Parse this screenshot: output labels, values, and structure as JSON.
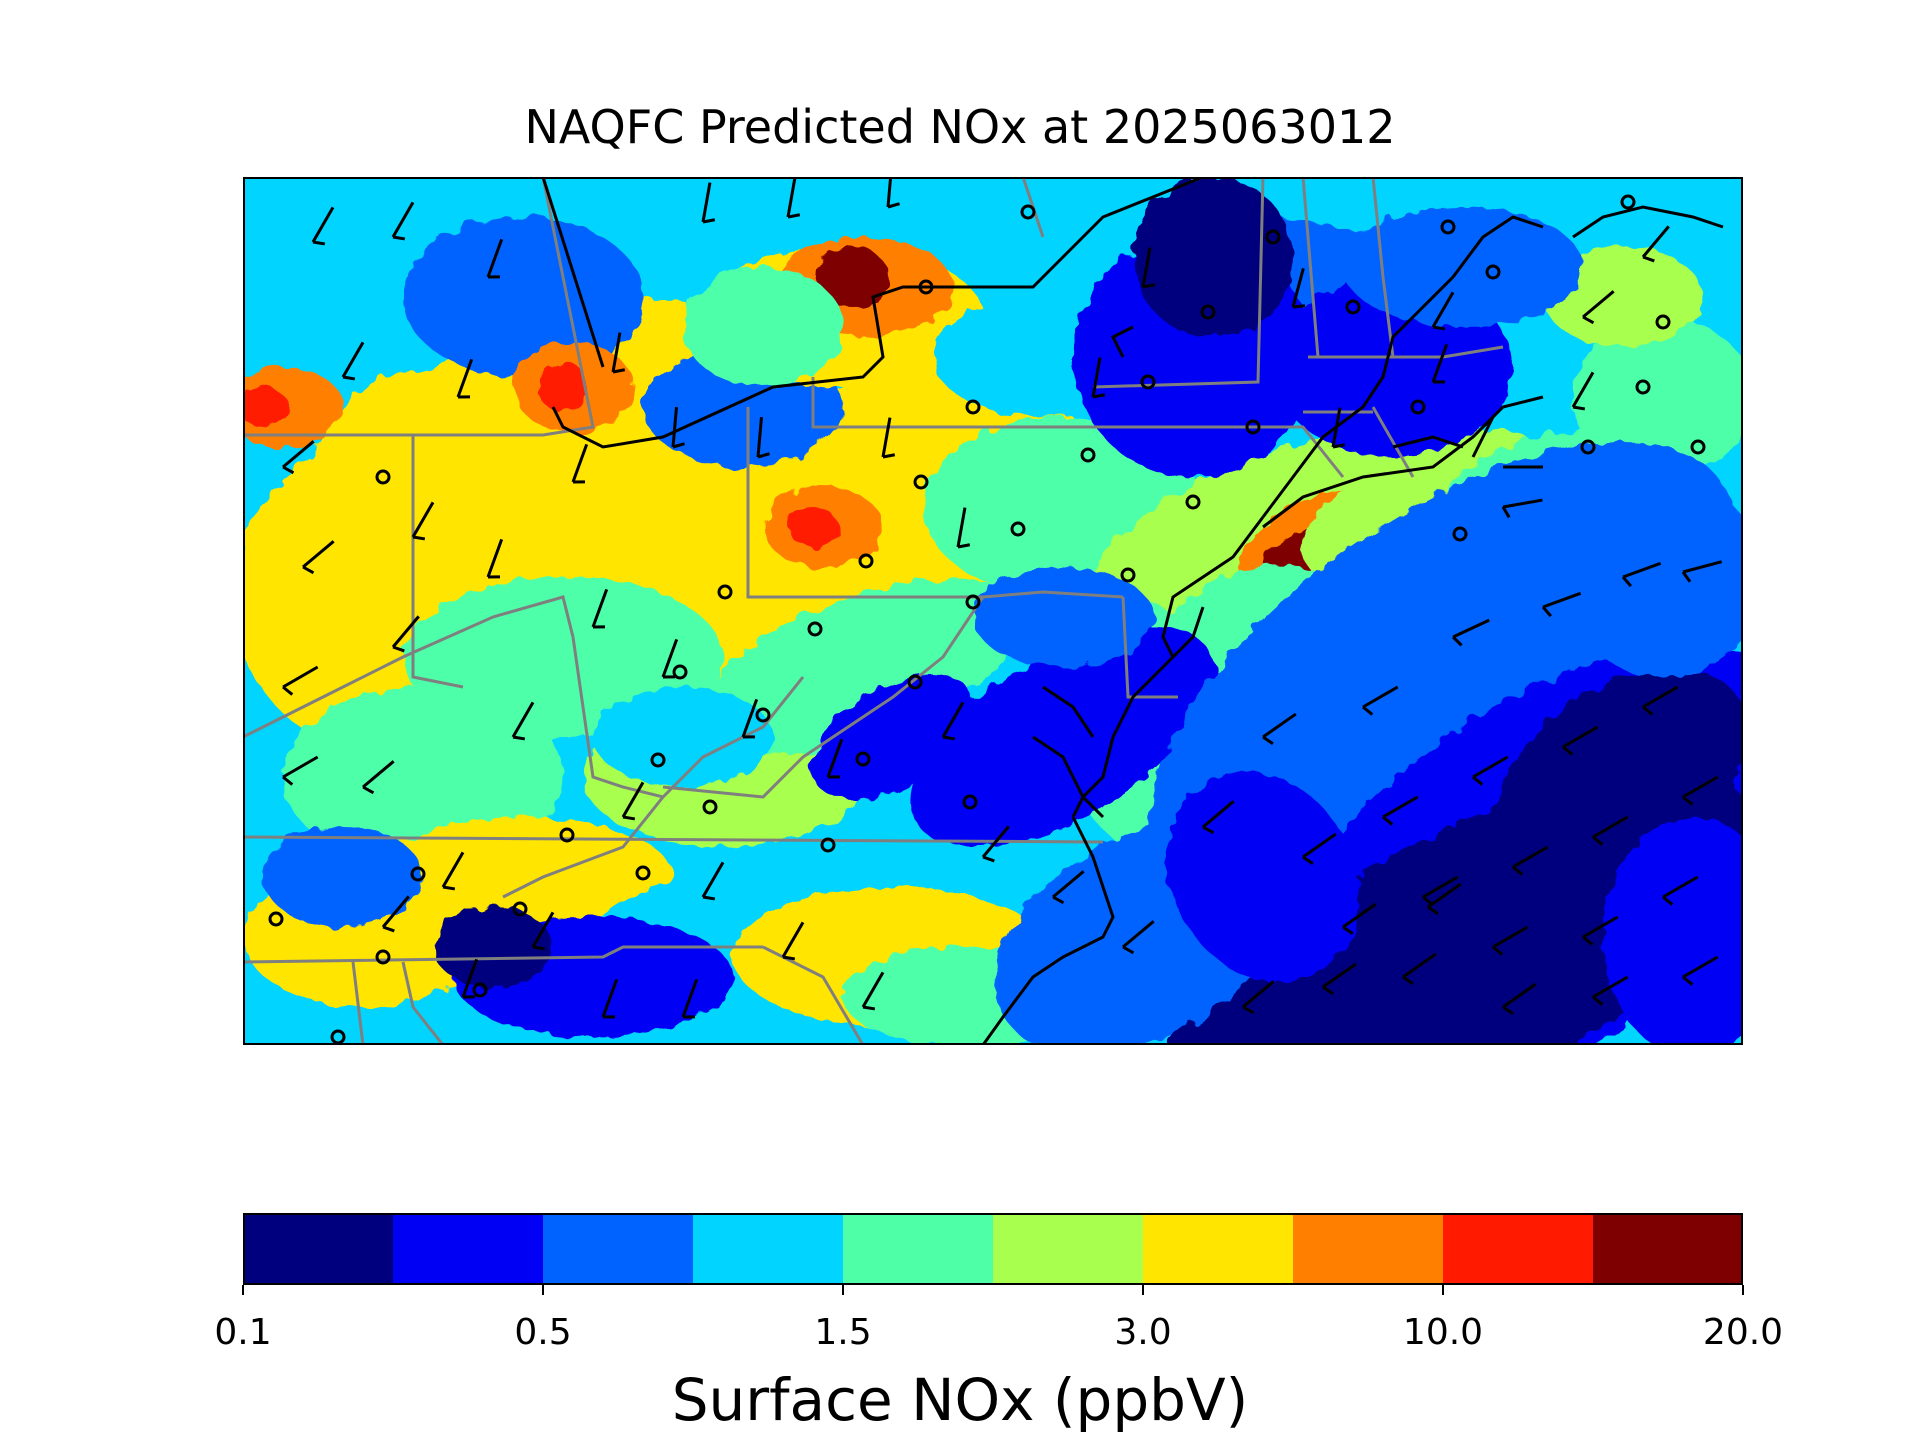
{
  "title": "NAQFC Predicted NOx at 2025063012",
  "colorbar": {
    "label": "Surface NOx (ppbV)",
    "ticks": [
      "0.1",
      "0.5",
      "1.5",
      "3.0",
      "10.0",
      "20.0"
    ],
    "colors": [
      "#00007f",
      "#0000f4",
      "#0062ff",
      "#00d4ff",
      "#4effa8",
      "#a8ff4e",
      "#ffe500",
      "#ff7f00",
      "#ff1a00",
      "#7f0000"
    ]
  },
  "map": {
    "background_color": "#00d4ff",
    "border_color": "#7f7f7f",
    "coast_color": "#000000",
    "site_marker": "open-circle",
    "wind_marker": "wind-barb"
  }
}
